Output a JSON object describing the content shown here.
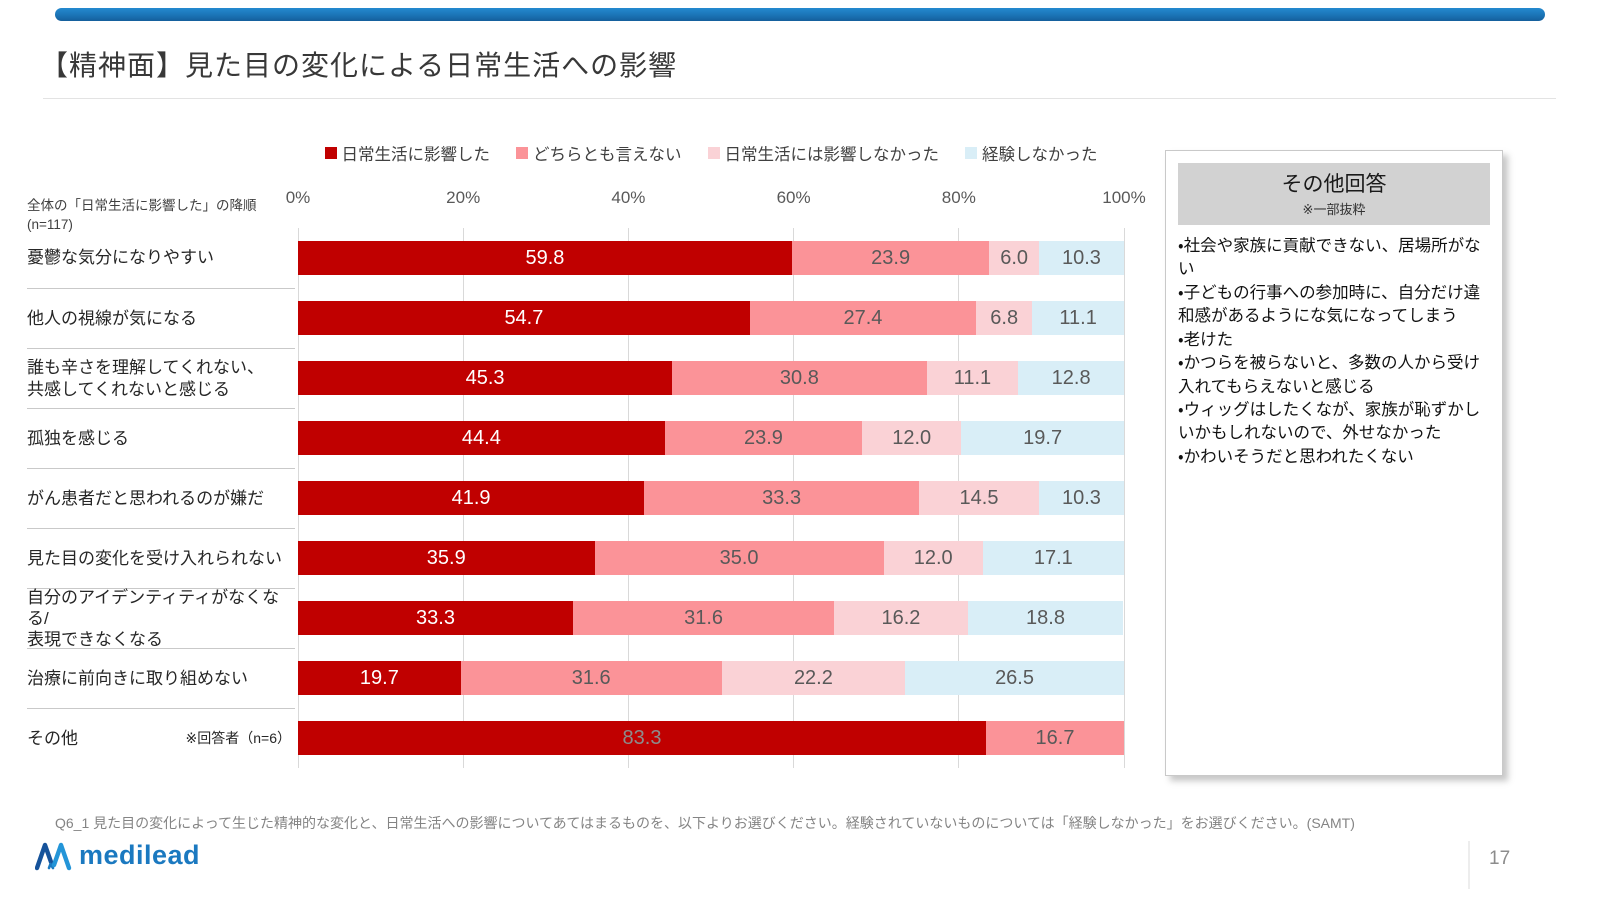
{
  "page": {
    "title": "【精神面】見た目の変化による日常生活への影響",
    "page_number": "17",
    "question_text": "Q6_1 見た目の変化によって生じた精神的な変化と、日常生活への影響についてあてはまるものを、以下よりお選びください。経験されていないものについては「経験しなかった」をお選びください。(SAMT)",
    "logo_text": "medilead"
  },
  "chart_data": {
    "type": "bar",
    "orientation": "horizontal",
    "stacked": true,
    "grid": true,
    "legend_position": "top",
    "sort_note": "全体の「日常生活に影響した」の降順\n(n=117)",
    "x_ticks": [
      "0%",
      "20%",
      "40%",
      "60%",
      "80%",
      "100%"
    ],
    "xlim": [
      0,
      100
    ],
    "series_names": [
      "日常生活に影響した",
      "どちらとも言えない",
      "日常生活には影響しなかった",
      "経験しなかった"
    ],
    "series_colors": [
      "#c00000",
      "#fb9398",
      "#fad2d6",
      "#d9eef7"
    ],
    "rows": [
      {
        "label": "憂鬱な気分になりやすい",
        "values": [
          59.8,
          23.9,
          6.0,
          10.3
        ]
      },
      {
        "label": "他人の視線が気になる",
        "values": [
          54.7,
          27.4,
          6.8,
          11.1
        ]
      },
      {
        "label": "誰も辛さを理解してくれない、\n共感してくれないと感じる",
        "values": [
          45.3,
          30.8,
          11.1,
          12.8
        ]
      },
      {
        "label": "孤独を感じる",
        "values": [
          44.4,
          23.9,
          12.0,
          19.7
        ]
      },
      {
        "label": "がん患者だと思われるのが嫌だ",
        "values": [
          41.9,
          33.3,
          14.5,
          10.3
        ]
      },
      {
        "label": "見た目の変化を受け入れられない",
        "values": [
          35.9,
          35.0,
          12.0,
          17.1
        ]
      },
      {
        "label": "自分のアイデンティティがなくなる/\n表現できなくなる",
        "values": [
          33.3,
          31.6,
          16.2,
          18.8
        ]
      },
      {
        "label": "治療に前向きに取り組めない",
        "values": [
          19.7,
          31.6,
          22.2,
          26.5
        ]
      },
      {
        "label": "その他",
        "sub_label": "※回答者（n=6）",
        "values": [
          83.3,
          16.7
        ],
        "first_segment_label_gray": true
      }
    ]
  },
  "other_answers": {
    "title": "その他回答",
    "subtitle": "※一部抜粋",
    "bullet": "・",
    "items": [
      "社会や家族に貢献できない、居場所がない",
      "子どもの行事への参加時に、自分だけ違和感があるようにな気になってしまう",
      "老けた",
      "かつらを被らないと、多数の人から受け入れてもらえないと感じる",
      "ウィッグはしたくなが、家族が恥ずかしいかもしれないので、外せなかった",
      "かわいそうだと思われたくない"
    ]
  },
  "colors": {
    "accent_bar": "#1e7cc0",
    "logo_blue": "#1b79c0",
    "value_label": "#595959",
    "value_label_on_dark": "#ffffff"
  }
}
